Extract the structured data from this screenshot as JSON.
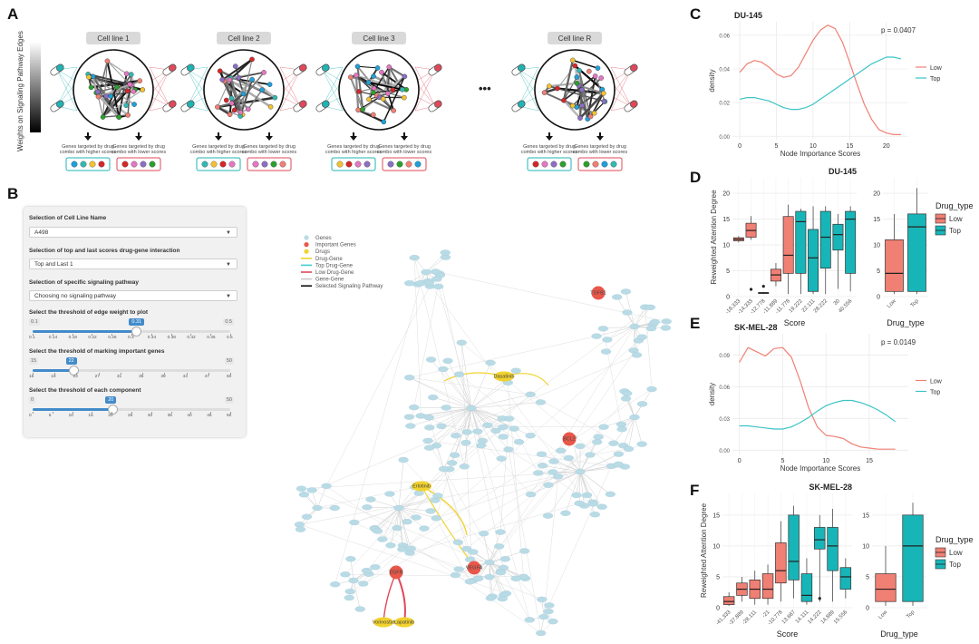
{
  "panels": {
    "a": "A",
    "b": "B",
    "c": "C",
    "d": "D",
    "e": "E",
    "f": "F"
  },
  "panel_a": {
    "colorbar_label": "Weights on Signaling Pathway Edges",
    "cell_lines": [
      "Cell line 1",
      "Cell line 2",
      "Cell line 3",
      "Cell line R"
    ],
    "ellipsis": "•••",
    "higher_caption": "Genes targeted by drug combo with higher scores",
    "lower_caption": "Genes targeted by drug combo with lower scores",
    "higher_color": "#1fb4b4",
    "lower_color": "#e0485a"
  },
  "controls": {
    "cell_line_label": "Selection of Cell Line Name",
    "cell_line_value": "A498",
    "scores_label": "Selection of top and last scores drug-gene interaction",
    "scores_value": "Top and Last 1",
    "pathway_label": "Selection of specific signaling pathway",
    "pathway_value": "Choosing no signaling pathway",
    "edge_label": "Select the threshold of edge weight to plot",
    "edge_min": "0.1",
    "edge_max": "0.5",
    "edge_value": "0.31",
    "edge_fraction": 0.52,
    "edge_ticks": [
      "0.1",
      "0.14",
      "0.18",
      "0.22",
      "0.26",
      "0.3",
      "0.34",
      "0.38",
      "0.42",
      "0.46",
      "0.5"
    ],
    "genes_label": "Select the threshold of marking important genes",
    "genes_min": "15",
    "genes_max": "50",
    "genes_value": "22",
    "genes_fraction": 0.2,
    "genes_ticks": [
      "15",
      "19",
      "23",
      "27",
      "31",
      "35",
      "39",
      "43",
      "47",
      "50"
    ],
    "comp_label": "Select the threshold of each component",
    "comp_min": "0",
    "comp_max": "50",
    "comp_value": "20",
    "comp_fraction": 0.4,
    "comp_ticks": [
      "0",
      "5",
      "10",
      "15",
      "20",
      "25",
      "30",
      "35",
      "40",
      "45",
      "50"
    ]
  },
  "network_legend": {
    "items": [
      {
        "label": "Genes",
        "kind": "dot",
        "color": "#b9dbe6"
      },
      {
        "label": "Important Genes",
        "kind": "dot",
        "color": "#e8574a"
      },
      {
        "label": "Drugs",
        "kind": "dot",
        "color": "#f2d22e"
      },
      {
        "label": "Drug-Gene",
        "kind": "line",
        "color": "#f2d22e"
      },
      {
        "label": "Top Drug-Gene",
        "kind": "line",
        "color": "#3fcfd0"
      },
      {
        "label": "Low Drug-Gene",
        "kind": "line",
        "color": "#e0485a"
      },
      {
        "label": "Gene-Gene",
        "kind": "line",
        "color": "#c8c8c8"
      },
      {
        "label": "Selected Signaling Pathway",
        "kind": "line",
        "color": "#111111"
      }
    ],
    "important_labels": [
      "TGFB1",
      "BCL2",
      "VEGFA",
      "EGFR"
    ],
    "drug_labels": [
      "Dasatinib",
      "Erlotinib",
      "Vorinostat",
      "Lapatinib"
    ]
  },
  "chart_data": [
    {
      "panel": "C",
      "type": "line",
      "title": "DU-145",
      "annotation": "p = 0.0407",
      "xlabel": "Node Importance Scores",
      "ylabel": "density",
      "xticks": [
        0,
        5,
        10,
        15,
        20
      ],
      "xlim": [
        -1,
        23
      ],
      "yticks": [
        "0.00",
        "0.02",
        "0.04",
        "0.06"
      ],
      "ylim": [
        -0.002,
        0.068
      ],
      "series": [
        {
          "name": "Low",
          "color": "#f07f74",
          "x": [
            0,
            1,
            2,
            3,
            4,
            5,
            6,
            7,
            8,
            9,
            10,
            11,
            12,
            13,
            14,
            15,
            16,
            17,
            18,
            19,
            20,
            21,
            22
          ],
          "values": [
            0.038,
            0.043,
            0.045,
            0.044,
            0.041,
            0.037,
            0.035,
            0.036,
            0.041,
            0.049,
            0.057,
            0.063,
            0.066,
            0.064,
            0.056,
            0.044,
            0.031,
            0.019,
            0.01,
            0.004,
            0.002,
            0.001,
            0.001
          ]
        },
        {
          "name": "Top",
          "color": "#3cc3c6",
          "x": [
            0,
            1,
            2,
            3,
            4,
            5,
            6,
            7,
            8,
            9,
            10,
            11,
            12,
            13,
            14,
            15,
            16,
            17,
            18,
            19,
            20,
            21,
            22
          ],
          "values": [
            0.022,
            0.023,
            0.023,
            0.022,
            0.021,
            0.019,
            0.017,
            0.016,
            0.016,
            0.017,
            0.019,
            0.022,
            0.025,
            0.028,
            0.031,
            0.034,
            0.037,
            0.04,
            0.043,
            0.045,
            0.047,
            0.047,
            0.046
          ]
        }
      ],
      "legend": [
        "Low",
        "Top"
      ]
    },
    {
      "panel": "D-left",
      "type": "box",
      "title": "DU-145",
      "xlabel": "Score",
      "ylabel": "Reweighted Attention Degree",
      "yticks": [
        0,
        5,
        10,
        15,
        20
      ],
      "ylim": [
        0,
        23
      ],
      "categories": [
        "-18.333",
        "-14.333",
        "-12.778",
        "-11.889",
        "-11.778",
        "19.222",
        "22.111",
        "28.222",
        "30",
        "40.556"
      ],
      "boxes": [
        {
          "group": "Low",
          "min": 10.5,
          "q1": 10.8,
          "med": 11.1,
          "q3": 11.4,
          "max": 11.7
        },
        {
          "group": "Low",
          "min": 11.0,
          "q1": 11.5,
          "med": 12.8,
          "q3": 14.2,
          "max": 15.6,
          "outliers": [
            1.4
          ]
        },
        {
          "group": "Low",
          "min": 0.5,
          "q1": 0.6,
          "med": 0.7,
          "q3": 0.8,
          "max": 0.9,
          "outliers": [
            2.0
          ]
        },
        {
          "group": "Low",
          "min": 2.0,
          "q1": 3.0,
          "med": 4.2,
          "q3": 5.3,
          "max": 6.5
        },
        {
          "group": "Low",
          "min": 0.5,
          "q1": 4.5,
          "med": 8.0,
          "q3": 15.5,
          "max": 17.8
        },
        {
          "group": "Top",
          "min": 0.5,
          "q1": 4.5,
          "med": 14.5,
          "q3": 16.5,
          "max": 17.0
        },
        {
          "group": "Top",
          "min": 0.5,
          "q1": 1.0,
          "med": 7.5,
          "q3": 13.0,
          "max": 17.5
        },
        {
          "group": "Top",
          "min": 0.5,
          "q1": 5.5,
          "med": 11.5,
          "q3": 16.5,
          "max": 17.5
        },
        {
          "group": "Top",
          "min": 1.5,
          "q1": 9.0,
          "med": 12.0,
          "q3": 14.0,
          "max": 16.0
        },
        {
          "group": "Top",
          "min": 1.0,
          "q1": 4.5,
          "med": 15.0,
          "q3": 16.5,
          "max": 17.5
        }
      ]
    },
    {
      "panel": "D-right",
      "type": "box",
      "xlabel": "Drug_type",
      "yticks": [
        0,
        5,
        10,
        15,
        20
      ],
      "ylim": [
        0,
        23
      ],
      "categories": [
        "Low",
        "Top"
      ],
      "boxes": [
        {
          "group": "Low",
          "min": 0.5,
          "q1": 1.0,
          "med": 4.5,
          "q3": 11.0,
          "max": 16.0
        },
        {
          "group": "Top",
          "min": 0.5,
          "q1": 1.0,
          "med": 13.5,
          "q3": 16.0,
          "max": 21.0
        }
      ],
      "legend_title": "Drug_type",
      "legend": [
        "Low",
        "Top"
      ]
    },
    {
      "panel": "E",
      "type": "line",
      "title": "SK-MEL-28",
      "annotation": "p = 0.0149",
      "xlabel": "Node Importance Scores",
      "ylabel": "density",
      "xticks": [
        0,
        5,
        10,
        15
      ],
      "xlim": [
        -0.8,
        19.5
      ],
      "yticks": [
        "0.00",
        "0.03",
        "0.06",
        "0.09"
      ],
      "ylim": [
        -0.004,
        0.11
      ],
      "series": [
        {
          "name": "Low",
          "color": "#f07f74",
          "x": [
            0,
            1,
            2,
            3,
            4,
            5,
            6,
            7,
            8,
            9,
            10,
            11,
            12,
            13,
            14,
            15,
            16,
            17,
            18
          ],
          "values": [
            0.083,
            0.097,
            0.093,
            0.089,
            0.096,
            0.097,
            0.088,
            0.066,
            0.04,
            0.022,
            0.014,
            0.013,
            0.011,
            0.006,
            0.003,
            0.002,
            0.001,
            0.001,
            0.001
          ]
        },
        {
          "name": "Top",
          "color": "#3cc3c6",
          "x": [
            0,
            1,
            2,
            3,
            4,
            5,
            6,
            7,
            8,
            9,
            10,
            11,
            12,
            13,
            14,
            15,
            16,
            17,
            18
          ],
          "values": [
            0.023,
            0.023,
            0.022,
            0.021,
            0.02,
            0.02,
            0.022,
            0.026,
            0.031,
            0.037,
            0.042,
            0.045,
            0.047,
            0.047,
            0.045,
            0.042,
            0.038,
            0.033,
            0.027
          ]
        }
      ],
      "legend": [
        "Low",
        "Top"
      ]
    },
    {
      "panel": "F-left",
      "type": "box",
      "title": "SK-MEL-28",
      "xlabel": "Score",
      "ylabel": "Reweighted Attention Degree",
      "yticks": [
        0,
        5,
        10,
        15
      ],
      "ylim": [
        0,
        18.5
      ],
      "categories": [
        "-41.333",
        "-37.889",
        "-28.111",
        "-21",
        "-10.778",
        "13.667",
        "14.111",
        "14.222",
        "14.889",
        "15.556"
      ],
      "boxes": [
        {
          "group": "Low",
          "min": 0.3,
          "q1": 0.5,
          "med": 1.0,
          "q3": 1.8,
          "max": 2.5
        },
        {
          "group": "Low",
          "min": 1.0,
          "q1": 2.0,
          "med": 3.0,
          "q3": 4.0,
          "max": 5.0
        },
        {
          "group": "Low",
          "min": 0.5,
          "q1": 1.5,
          "med": 3.0,
          "q3": 4.5,
          "max": 6.0
        },
        {
          "group": "Low",
          "min": 0.5,
          "q1": 1.5,
          "med": 3.0,
          "q3": 5.5,
          "max": 7.0
        },
        {
          "group": "Low",
          "min": 1.0,
          "q1": 4.0,
          "med": 6.0,
          "q3": 10.5,
          "max": 14.0
        },
        {
          "group": "Top",
          "min": 1.5,
          "q1": 4.5,
          "med": 7.5,
          "q3": 15.0,
          "max": 16.5
        },
        {
          "group": "Top",
          "min": 0.5,
          "q1": 1.0,
          "med": 2.0,
          "q3": 5.5,
          "max": 8.0
        },
        {
          "group": "Top",
          "min": 1.0,
          "q1": 9.5,
          "med": 11.0,
          "q3": 13.0,
          "max": 15.0,
          "outliers": [
            1.5
          ]
        },
        {
          "group": "Top",
          "min": 1.0,
          "q1": 6.0,
          "med": 10.0,
          "q3": 13.0,
          "max": 16.0
        },
        {
          "group": "Top",
          "min": 1.5,
          "q1": 3.0,
          "med": 5.0,
          "q3": 6.5,
          "max": 8.0
        }
      ]
    },
    {
      "panel": "F-right",
      "type": "box",
      "xlabel": "Drug_type",
      "yticks": [
        0,
        5,
        10,
        15
      ],
      "ylim": [
        0,
        18.5
      ],
      "categories": [
        "Low",
        "Top"
      ],
      "boxes": [
        {
          "group": "Low",
          "min": 0.3,
          "q1": 1.0,
          "med": 3.0,
          "q3": 5.5,
          "max": 10.0
        },
        {
          "group": "Top",
          "min": 0.3,
          "q1": 1.0,
          "med": 10.0,
          "q3": 15.0,
          "max": 17.0
        }
      ],
      "legend_title": "Drug_type",
      "legend": [
        "Low",
        "Top"
      ]
    }
  ],
  "colors": {
    "low": "#f07f74",
    "top": "#18b5b8",
    "grid": "#ebebeb",
    "panel_bg": "#ffffff"
  }
}
